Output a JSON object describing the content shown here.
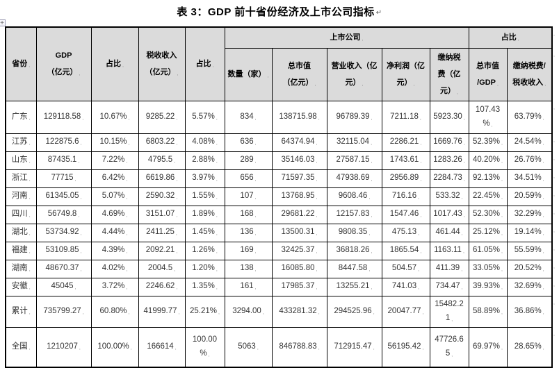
{
  "title": "表 3：GDP 前十省份经济及上市公司指标",
  "formatting_marks": {
    "title_return": "↵",
    "end_of_cell": ",",
    "end_of_row": ","
  },
  "table": {
    "group_header": {
      "listed_companies": "上市公司",
      "share": "占比"
    },
    "columns": {
      "province": "省份",
      "gdp": "GDP\n（亿元）",
      "gdp_share": "占比",
      "tax_revenue": "税收收入\n（亿元）",
      "tax_share": "占比",
      "count": "数量（家）",
      "market_cap": "总市值\n（亿元）",
      "revenue": "营业收入（亿\n元）",
      "net_profit": "净利润（亿\n元）",
      "taxes_paid": "缴纳税\n费（亿\n元）",
      "cap_over_gdp": "总市值\n/GDP",
      "taxes_over_tax": "缴纳税费/\n税收收入"
    },
    "rows": [
      [
        "广东",
        "129118.58",
        "10.67%",
        "9285.22",
        "5.57%",
        "834",
        "138715.98",
        "96789.39",
        "7211.18",
        "5923.30",
        "107.43\n%",
        "63.79%"
      ],
      [
        "江苏",
        "122875.6",
        "10.15%",
        "6803.22",
        "4.08%",
        "636",
        "64374.94",
        "32115.04",
        "2286.21",
        "1669.76",
        "52.39%",
        "24.54%"
      ],
      [
        "山东",
        "87435.1",
        "7.22%",
        "4795.5",
        "2.88%",
        "289",
        "35146.03",
        "27587.15",
        "1743.61",
        "1283.26",
        "40.20%",
        "26.76%"
      ],
      [
        "浙江",
        "77715",
        "6.42%",
        "6619.86",
        "3.97%",
        "656",
        "71597.35",
        "47938.69",
        "2956.89",
        "2284.73",
        "92.13%",
        "34.51%"
      ],
      [
        "河南",
        "61345.05",
        "5.07%",
        "2590.32",
        "1.55%",
        "107",
        "13768.95",
        "9608.46",
        "716.16",
        "533.32",
        "22.45%",
        "20.59%"
      ],
      [
        "四川",
        "56749.8",
        "4.69%",
        "3151.07",
        "1.89%",
        "168",
        "29681.22",
        "12157.83",
        "1547.46",
        "1017.43",
        "52.30%",
        "32.29%"
      ],
      [
        "湖北",
        "53734.92",
        "4.44%",
        "2411.25",
        "1.45%",
        "136",
        "13500.31",
        "9808.35",
        "475.13",
        "461.44",
        "25.12%",
        "19.14%"
      ],
      [
        "福建",
        "53109.85",
        "4.39%",
        "2092.21",
        "1.26%",
        "169",
        "32425.37",
        "36818.26",
        "1865.54",
        "1163.11",
        "61.05%",
        "55.59%"
      ],
      [
        "湖南",
        "48670.37",
        "4.02%",
        "2004.5",
        "1.20%",
        "138",
        "16085.80",
        "8447.58",
        "504.57",
        "411.39",
        "33.05%",
        "20.52%"
      ],
      [
        "安徽",
        "45045",
        "3.72%",
        "2246.62",
        "1.35%",
        "161",
        "17985.37",
        "13255.21",
        "741.03",
        "734.47",
        "39.93%",
        "32.69%"
      ],
      [
        "累计",
        "735799.27",
        "60.80%",
        "41999.77",
        "25.21%",
        "3294.00",
        "433281.32",
        "294525.96",
        "20047.77",
        "15482.2\n1",
        "58.89%",
        "36.86%"
      ],
      [
        "全国",
        "1210207",
        "100.00%",
        "166614",
        "100.00\n%",
        "5063",
        "846788.83",
        "712915.47",
        "56195.42",
        "47726.6\n5",
        "69.97%",
        "28.65%"
      ]
    ]
  }
}
